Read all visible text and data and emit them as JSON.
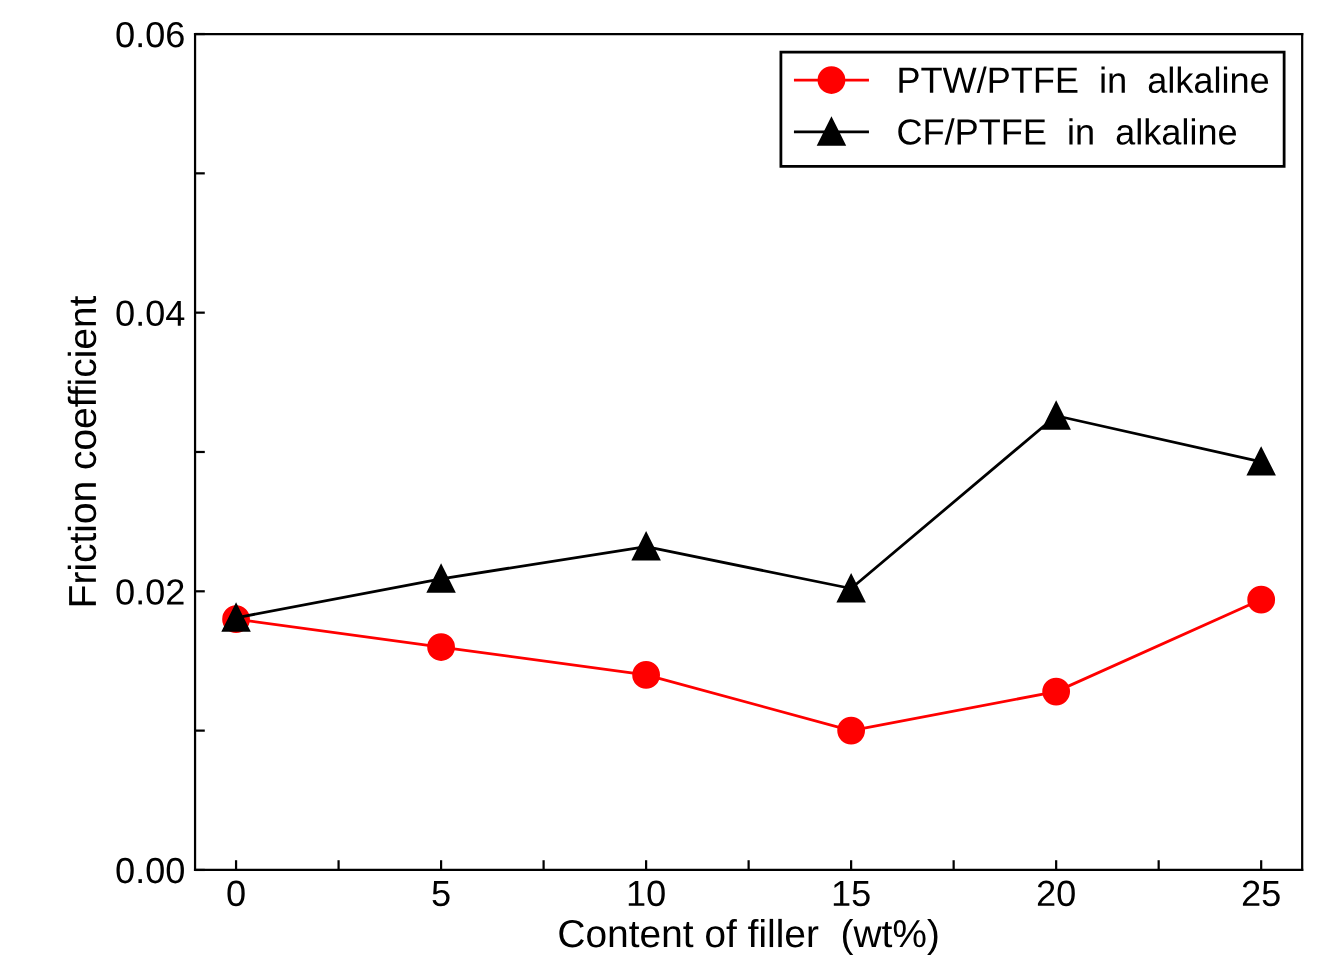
{
  "chart_data": {
    "type": "line",
    "xlabel": "Content of filler  (wt%)",
    "ylabel": "Friction coefficient",
    "x": [
      0,
      5,
      10,
      15,
      20,
      25
    ],
    "series": [
      {
        "name": "PTW/PTFE  in  alkaline",
        "color": "#ff0000",
        "marker": "circle",
        "values": [
          0.018,
          0.016,
          0.014,
          0.01,
          0.0128,
          0.0194
        ]
      },
      {
        "name": "CF/PTFE  in  alkaline",
        "color": "#000000",
        "marker": "triangle",
        "values": [
          0.0181,
          0.0209,
          0.0232,
          0.0202,
          0.0326,
          0.0293
        ]
      }
    ],
    "xlim": [
      -1,
      26
    ],
    "ylim": [
      0,
      0.06
    ],
    "xticks": [
      0,
      {
        "value": 2.5,
        "label": null
      },
      5,
      {
        "value": 7.5,
        "label": null
      },
      10,
      {
        "value": 12.5,
        "label": null
      },
      15,
      {
        "value": 17.5,
        "label": null
      },
      20,
      {
        "value": 22.5,
        "label": null
      },
      25
    ],
    "yticks": [
      {
        "value": 0,
        "label": "0.00"
      },
      {
        "value": 0.01,
        "label": null
      },
      {
        "value": 0.02,
        "label": "0.02"
      },
      {
        "value": 0.03,
        "label": null
      },
      {
        "value": 0.04,
        "label": "0.04"
      },
      {
        "value": 0.05,
        "label": null
      },
      {
        "value": 0.06,
        "label": "0.06"
      }
    ],
    "grid": false,
    "legend": "top right",
    "line_style": "solid"
  }
}
